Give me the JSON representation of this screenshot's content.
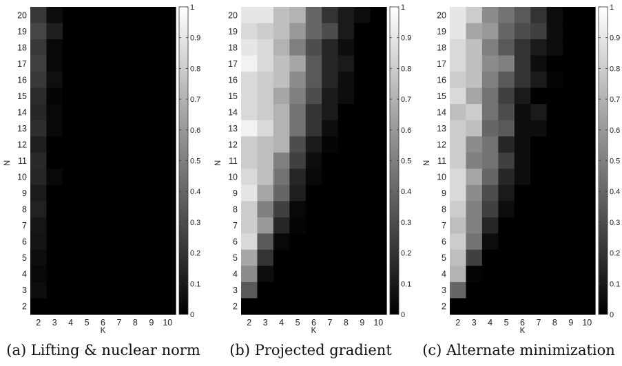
{
  "chart_data": [
    {
      "type": "heatmap",
      "caption": "(a) Lifting & nuclear norm",
      "xlabel": "K",
      "ylabel": "N",
      "x": [
        2,
        3,
        4,
        5,
        6,
        7,
        8,
        9,
        10
      ],
      "y": [
        20,
        19,
        18,
        17,
        16,
        15,
        14,
        13,
        12,
        11,
        10,
        9,
        8,
        7,
        6,
        5,
        4,
        3,
        2
      ],
      "values": [
        [
          0.22,
          0.05,
          0,
          0,
          0,
          0,
          0,
          0,
          0
        ],
        [
          0.27,
          0.12,
          0,
          0,
          0,
          0,
          0,
          0,
          0
        ],
        [
          0.22,
          0.03,
          0,
          0,
          0,
          0,
          0,
          0,
          0
        ],
        [
          0.25,
          0.03,
          0,
          0,
          0,
          0,
          0,
          0,
          0
        ],
        [
          0.22,
          0.06,
          0,
          0,
          0,
          0,
          0,
          0,
          0
        ],
        [
          0.17,
          0.02,
          0,
          0,
          0,
          0,
          0,
          0,
          0
        ],
        [
          0.15,
          0.03,
          0,
          0,
          0,
          0,
          0,
          0,
          0
        ],
        [
          0.18,
          0.03,
          0,
          0,
          0,
          0,
          0,
          0,
          0
        ],
        [
          0.12,
          0,
          0,
          0,
          0,
          0,
          0,
          0,
          0
        ],
        [
          0.16,
          0,
          0,
          0,
          0,
          0,
          0,
          0,
          0
        ],
        [
          0.15,
          0.03,
          0,
          0,
          0,
          0,
          0,
          0,
          0
        ],
        [
          0.1,
          0,
          0,
          0,
          0,
          0,
          0,
          0,
          0
        ],
        [
          0.13,
          0,
          0,
          0,
          0,
          0,
          0,
          0,
          0
        ],
        [
          0.09,
          0,
          0,
          0,
          0,
          0,
          0,
          0,
          0
        ],
        [
          0.08,
          0,
          0,
          0,
          0,
          0,
          0,
          0,
          0
        ],
        [
          0.05,
          0,
          0,
          0,
          0,
          0,
          0,
          0,
          0
        ],
        [
          0.03,
          0,
          0,
          0,
          0,
          0,
          0,
          0,
          0
        ],
        [
          0.05,
          0,
          0,
          0,
          0,
          0,
          0,
          0,
          0
        ],
        [
          0,
          0,
          0,
          0,
          0,
          0,
          0,
          0,
          0
        ]
      ],
      "colorbar": {
        "range": [
          0,
          1
        ],
        "ticks": [
          "0",
          "0.1",
          "0.2",
          "0.3",
          "0.4",
          "0.5",
          "0.6",
          "0.7",
          "0.8",
          "0.9",
          "1"
        ]
      },
      "colormap": "gray"
    },
    {
      "type": "heatmap",
      "caption": "(b) Projected gradient",
      "xlabel": "K",
      "ylabel": "N",
      "x": [
        2,
        3,
        4,
        5,
        6,
        7,
        8,
        9,
        10
      ],
      "y": [
        20,
        19,
        18,
        17,
        16,
        15,
        14,
        13,
        12,
        11,
        10,
        9,
        8,
        7,
        6,
        5,
        4,
        3,
        2
      ],
      "values": [
        [
          0.9,
          0.9,
          0.75,
          0.7,
          0.4,
          0.2,
          0.1,
          0.05,
          0
        ],
        [
          0.85,
          0.8,
          0.75,
          0.6,
          0.4,
          0.3,
          0.1,
          0,
          0
        ],
        [
          0.9,
          0.85,
          0.7,
          0.5,
          0.3,
          0.15,
          0.05,
          0,
          0
        ],
        [
          0.95,
          0.85,
          0.75,
          0.65,
          0.35,
          0.15,
          0.1,
          0,
          0
        ],
        [
          0.85,
          0.8,
          0.75,
          0.55,
          0.35,
          0.15,
          0.05,
          0,
          0
        ],
        [
          0.85,
          0.8,
          0.65,
          0.5,
          0.3,
          0.1,
          0.05,
          0,
          0
        ],
        [
          0.85,
          0.8,
          0.7,
          0.45,
          0.2,
          0.1,
          0,
          0,
          0
        ],
        [
          0.95,
          0.85,
          0.7,
          0.45,
          0.2,
          0.05,
          0,
          0,
          0
        ],
        [
          0.8,
          0.75,
          0.7,
          0.3,
          0.1,
          0.02,
          0,
          0,
          0
        ],
        [
          0.8,
          0.75,
          0.5,
          0.25,
          0.05,
          0,
          0,
          0,
          0
        ],
        [
          0.85,
          0.75,
          0.45,
          0.15,
          0.03,
          0,
          0,
          0,
          0
        ],
        [
          0.9,
          0.65,
          0.4,
          0.12,
          0,
          0,
          0,
          0,
          0
        ],
        [
          0.8,
          0.5,
          0.25,
          0.03,
          0,
          0,
          0,
          0,
          0
        ],
        [
          0.8,
          0.6,
          0.15,
          0.02,
          0,
          0,
          0,
          0,
          0
        ],
        [
          0.85,
          0.35,
          0.03,
          0,
          0,
          0,
          0,
          0,
          0
        ],
        [
          0.65,
          0.2,
          0,
          0,
          0,
          0,
          0,
          0,
          0
        ],
        [
          0.55,
          0.05,
          0,
          0,
          0,
          0,
          0,
          0,
          0
        ],
        [
          0.35,
          0,
          0,
          0,
          0,
          0,
          0,
          0,
          0
        ],
        [
          0,
          0,
          0,
          0,
          0,
          0,
          0,
          0,
          0
        ]
      ],
      "colorbar": {
        "range": [
          0,
          1
        ],
        "ticks": [
          "0",
          "0.1",
          "0.2",
          "0.3",
          "0.4",
          "0.5",
          "0.6",
          "0.7",
          "0.8",
          "0.9",
          "1"
        ]
      },
      "colormap": "gray"
    },
    {
      "type": "heatmap",
      "caption": "(c) Alternate minimization",
      "xlabel": "K",
      "ylabel": "N",
      "x": [
        2,
        3,
        4,
        5,
        6,
        7,
        8,
        9,
        10
      ],
      "y": [
        20,
        19,
        18,
        17,
        16,
        15,
        14,
        13,
        12,
        11,
        10,
        9,
        8,
        7,
        6,
        5,
        4,
        3,
        2
      ],
      "values": [
        [
          0.9,
          0.8,
          0.55,
          0.45,
          0.35,
          0.2,
          0.05,
          0,
          0
        ],
        [
          0.9,
          0.65,
          0.6,
          0.4,
          0.3,
          0.25,
          0.05,
          0,
          0
        ],
        [
          0.85,
          0.75,
          0.5,
          0.35,
          0.2,
          0.1,
          0.05,
          0,
          0
        ],
        [
          0.85,
          0.75,
          0.55,
          0.5,
          0.2,
          0.05,
          0,
          0,
          0
        ],
        [
          0.8,
          0.75,
          0.5,
          0.35,
          0.2,
          0.1,
          0.02,
          0,
          0
        ],
        [
          0.85,
          0.65,
          0.45,
          0.25,
          0.1,
          0,
          0,
          0,
          0
        ],
        [
          0.75,
          0.8,
          0.45,
          0.3,
          0.05,
          0.1,
          0,
          0,
          0
        ],
        [
          0.8,
          0.75,
          0.4,
          0.35,
          0.05,
          0.05,
          0,
          0,
          0
        ],
        [
          0.8,
          0.55,
          0.45,
          0.15,
          0.05,
          0,
          0,
          0,
          0
        ],
        [
          0.8,
          0.5,
          0.45,
          0.25,
          0.05,
          0,
          0,
          0,
          0
        ],
        [
          0.85,
          0.65,
          0.4,
          0.15,
          0.05,
          0,
          0,
          0,
          0
        ],
        [
          0.85,
          0.55,
          0.3,
          0.1,
          0,
          0,
          0,
          0,
          0
        ],
        [
          0.8,
          0.5,
          0.25,
          0.05,
          0,
          0,
          0,
          0,
          0
        ],
        [
          0.75,
          0.5,
          0.15,
          0,
          0,
          0,
          0,
          0,
          0
        ],
        [
          0.8,
          0.45,
          0.05,
          0,
          0,
          0,
          0,
          0,
          0
        ],
        [
          0.75,
          0.25,
          0,
          0,
          0,
          0,
          0,
          0,
          0
        ],
        [
          0.7,
          0.02,
          0,
          0,
          0,
          0,
          0,
          0,
          0
        ],
        [
          0.4,
          0,
          0,
          0,
          0,
          0,
          0,
          0,
          0
        ],
        [
          0,
          0,
          0,
          0,
          0,
          0,
          0,
          0,
          0
        ]
      ],
      "colorbar": {
        "range": [
          0,
          1
        ],
        "ticks": [
          "0",
          "0.1",
          "0.2",
          "0.3",
          "0.4",
          "0.5",
          "0.6",
          "0.7",
          "0.8",
          "0.9",
          "1"
        ]
      },
      "colormap": "gray"
    }
  ]
}
